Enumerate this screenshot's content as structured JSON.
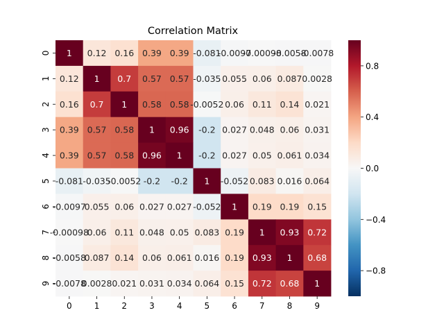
{
  "chart_data": {
    "type": "heatmap",
    "title": "Correlation Matrix",
    "xlabel": "",
    "ylabel": "",
    "x_tick_labels": [
      "0",
      "1",
      "2",
      "3",
      "4",
      "5",
      "6",
      "7",
      "8",
      "9"
    ],
    "y_tick_labels": [
      "0",
      "1",
      "2",
      "3",
      "4",
      "5",
      "6",
      "7",
      "8",
      "9"
    ],
    "values": [
      [
        1,
        0.12,
        0.16,
        0.39,
        0.39,
        -0.081,
        -0.0097,
        -0.00098,
        -0.0058,
        -0.0078
      ],
      [
        0.12,
        1,
        0.7,
        0.57,
        0.57,
        -0.035,
        0.055,
        0.06,
        0.087,
        0.0028
      ],
      [
        0.16,
        0.7,
        1,
        0.58,
        0.58,
        -0.0052,
        0.06,
        0.11,
        0.14,
        0.021
      ],
      [
        0.39,
        0.57,
        0.58,
        1,
        0.96,
        -0.2,
        0.027,
        0.048,
        0.06,
        0.031
      ],
      [
        0.39,
        0.57,
        0.58,
        0.96,
        1,
        -0.2,
        0.027,
        0.05,
        0.061,
        0.034
      ],
      [
        -0.081,
        -0.035,
        -0.0052,
        -0.2,
        -0.2,
        1,
        -0.052,
        0.083,
        0.016,
        0.064
      ],
      [
        -0.0097,
        0.055,
        0.06,
        0.027,
        0.027,
        -0.052,
        1,
        0.19,
        0.19,
        0.15
      ],
      [
        -0.00098,
        0.06,
        0.11,
        0.048,
        0.05,
        0.083,
        0.19,
        1,
        0.93,
        0.72
      ],
      [
        -0.0058,
        0.087,
        0.14,
        0.06,
        0.061,
        0.016,
        0.19,
        0.93,
        1,
        0.68
      ],
      [
        -0.0078,
        0.0028,
        0.021,
        0.031,
        0.034,
        0.064,
        0.15,
        0.72,
        0.68,
        1
      ]
    ],
    "display_labels": [
      [
        "1",
        "0.12",
        "0.16",
        "0.39",
        "0.39",
        "-0.081",
        "-0.0097",
        "-0.00098",
        "-0.0058",
        "-0.0078"
      ],
      [
        "0.12",
        "1",
        "0.7",
        "0.57",
        "0.57",
        "-0.035",
        "0.055",
        "0.06",
        "0.087",
        "0.0028"
      ],
      [
        "0.16",
        "0.7",
        "1",
        "0.58",
        "0.58",
        "-0.0052",
        "0.06",
        "0.11",
        "0.14",
        "0.021"
      ],
      [
        "0.39",
        "0.57",
        "0.58",
        "1",
        "0.96",
        "-0.2",
        "0.027",
        "0.048",
        "0.06",
        "0.031"
      ],
      [
        "0.39",
        "0.57",
        "0.58",
        "0.96",
        "1",
        "-0.2",
        "0.027",
        "0.05",
        "0.061",
        "0.034"
      ],
      [
        "-0.081",
        "-0.035",
        "-0.0052",
        "-0.2",
        "-0.2",
        "1",
        "-0.052",
        "0.083",
        "0.016",
        "0.064"
      ],
      [
        "-0.0097",
        "0.055",
        "0.06",
        "0.027",
        "0.027",
        "-0.052",
        "1",
        "0.19",
        "0.19",
        "0.15"
      ],
      [
        "-0.00098",
        "0.06",
        "0.11",
        "0.048",
        "0.05",
        "0.083",
        "0.19",
        "1",
        "0.93",
        "0.72"
      ],
      [
        "-0.0058",
        "0.087",
        "0.14",
        "0.06",
        "0.061",
        "0.016",
        "0.19",
        "0.93",
        "1",
        "0.68"
      ],
      [
        "-0.0078",
        "0.0028",
        "0.021",
        "0.031",
        "0.034",
        "0.064",
        "0.15",
        "0.72",
        "0.68",
        "1"
      ]
    ],
    "colormap": "RdBu_r",
    "vmin": -1,
    "vmax": 1,
    "colorbar_ticks": [
      0.8,
      0.4,
      0.0,
      -0.4,
      -0.8
    ],
    "colorbar_tick_labels": [
      "0.8",
      "0.4",
      "0.0",
      "−0.4",
      "−0.8"
    ],
    "colormap_stops": [
      {
        "v": -1.0,
        "color": "#053061"
      },
      {
        "v": -0.8,
        "color": "#2166ac"
      },
      {
        "v": -0.6,
        "color": "#4393c3"
      },
      {
        "v": -0.4,
        "color": "#92c5de"
      },
      {
        "v": -0.2,
        "color": "#d1e5f0"
      },
      {
        "v": 0.0,
        "color": "#f7f7f7"
      },
      {
        "v": 0.2,
        "color": "#fddbc7"
      },
      {
        "v": 0.4,
        "color": "#f4a582"
      },
      {
        "v": 0.6,
        "color": "#d6604d"
      },
      {
        "v": 0.8,
        "color": "#b2182b"
      },
      {
        "v": 1.0,
        "color": "#67001f"
      }
    ]
  }
}
